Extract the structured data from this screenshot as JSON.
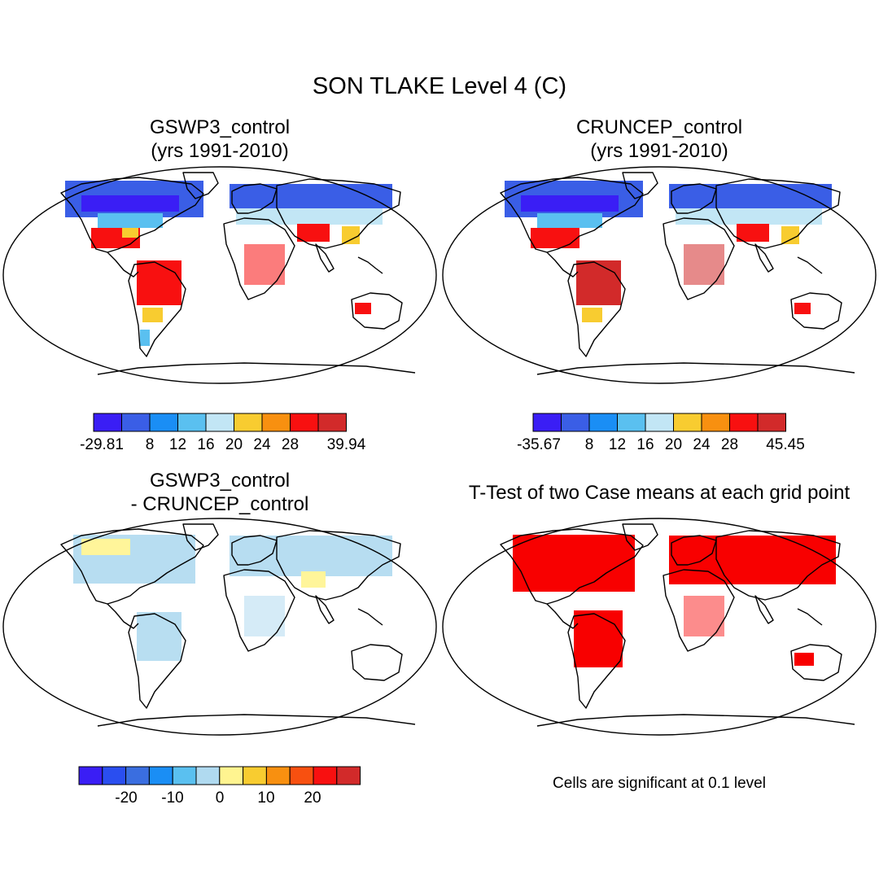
{
  "main_title": "SON TLAKE Level 4 (C)",
  "panels": [
    {
      "id": "p1",
      "title_line1": "GSWP3_control",
      "title_line2": "(yrs 1991-2010)",
      "type": "mean"
    },
    {
      "id": "p2",
      "title_line1": "CRUNCEP_control",
      "title_line2": "(yrs 1991-2010)",
      "type": "mean"
    },
    {
      "id": "p3",
      "title_line1": "GSWP3_control",
      "title_line2": "- CRUNCEP_control",
      "type": "difference"
    },
    {
      "id": "p4",
      "title": "T-Test of two Case means at each grid point",
      "type": "significance"
    }
  ],
  "colorbars": {
    "cb1": {
      "colors": [
        "#3a1ef5",
        "#3a5ee6",
        "#1a8ef5",
        "#5ac0f0",
        "#c2e6f5",
        "#f8cc30",
        "#f89010",
        "#f81010",
        "#d22a2a"
      ],
      "labels": [
        "-29.81",
        "8",
        "12",
        "16",
        "20",
        "24",
        "28",
        "39.94"
      ]
    },
    "cb2": {
      "colors": [
        "#3a1ef5",
        "#3a5ee6",
        "#1a8ef5",
        "#5ac0f0",
        "#c2e6f5",
        "#f8cc30",
        "#f89010",
        "#f81010",
        "#d22a2a"
      ],
      "labels": [
        "-35.67",
        "8",
        "12",
        "16",
        "20",
        "24",
        "28",
        "45.45"
      ]
    },
    "cb3": {
      "colors": [
        "#3a1ef5",
        "#2a4ef0",
        "#3a6ee0",
        "#1a8ef5",
        "#5ac0f0",
        "#b0daf0",
        "#fff490",
        "#f8cc30",
        "#f89010",
        "#f85010",
        "#f81010",
        "#d22a2a"
      ],
      "labels": [
        "-20",
        "-10",
        "0",
        "10",
        "20"
      ]
    }
  },
  "significance_note": "Cells are significant at 0.1 level",
  "significance_color": "#f80000"
}
